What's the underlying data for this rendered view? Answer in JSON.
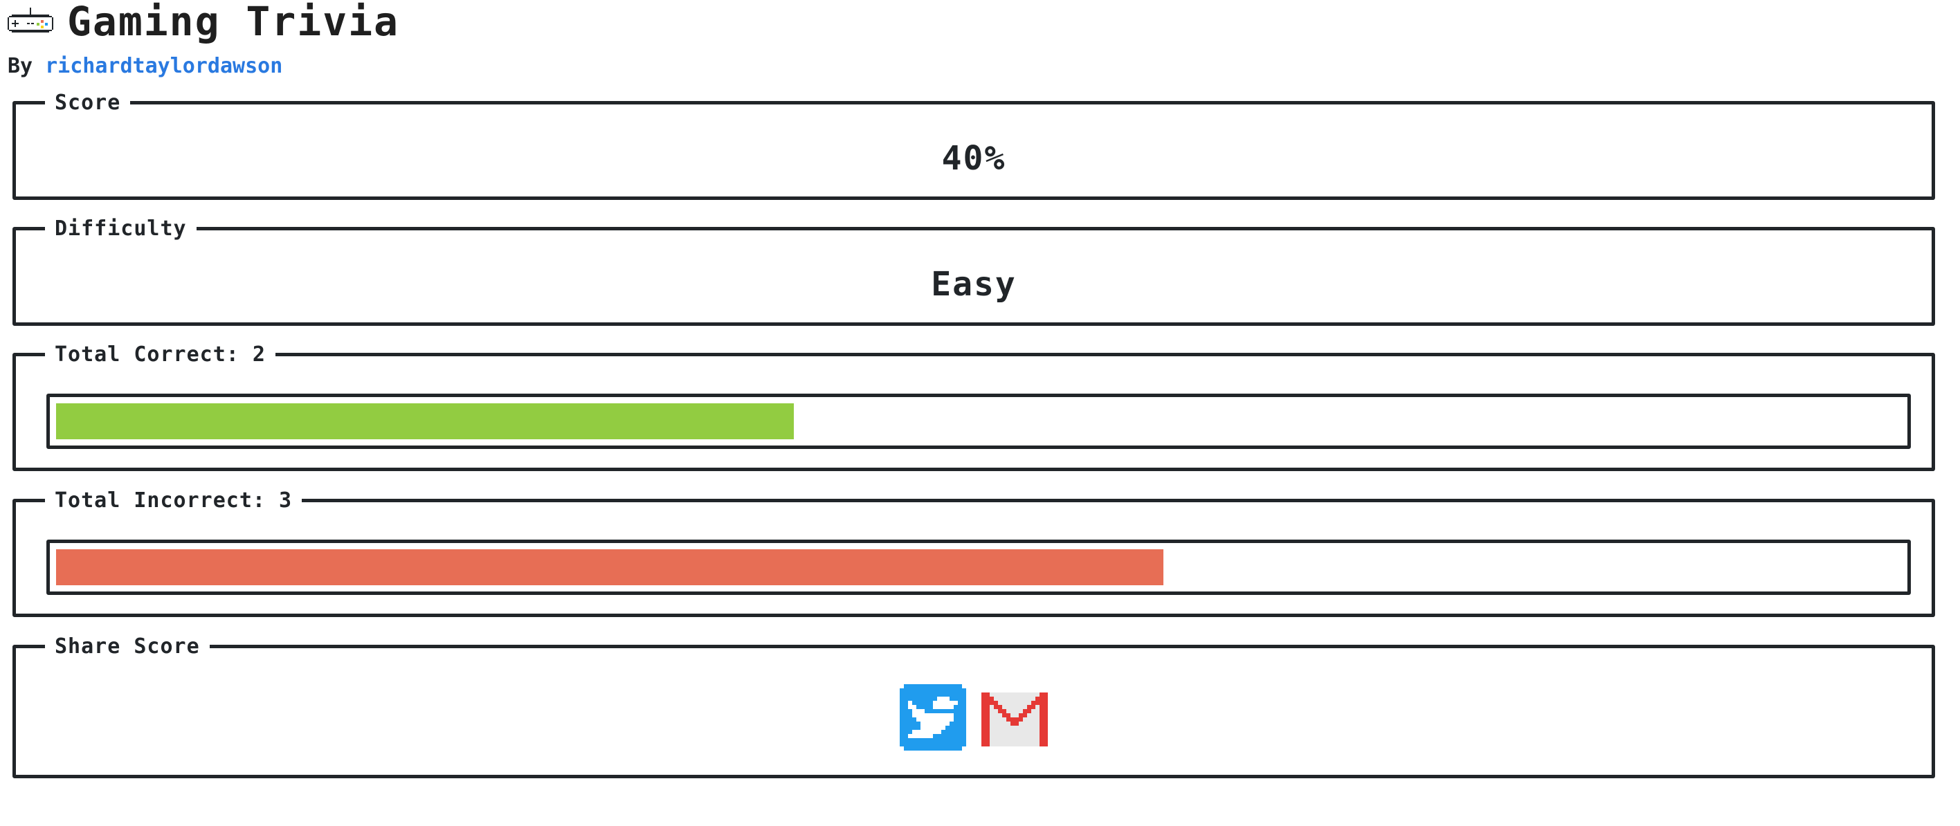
{
  "header": {
    "title": "Gaming Trivia",
    "by_label": "By",
    "author": "richardtaylordawson",
    "icon": "game-controller-icon"
  },
  "score": {
    "title": "Score",
    "value": "40%"
  },
  "difficulty": {
    "title": "Difficulty",
    "value": "Easy"
  },
  "correct": {
    "title": "Total Correct: 2",
    "count": 2,
    "fill_fraction": 0.4,
    "color": "#92cc41"
  },
  "incorrect": {
    "title": "Total Incorrect: 3",
    "count": 3,
    "fill_fraction": 0.6,
    "color": "#e76e55"
  },
  "share": {
    "title": "Share Score",
    "icons": [
      "twitter-icon",
      "gmail-icon"
    ],
    "twitter_color": "#209cee",
    "gmail_color": "#e53935"
  }
}
